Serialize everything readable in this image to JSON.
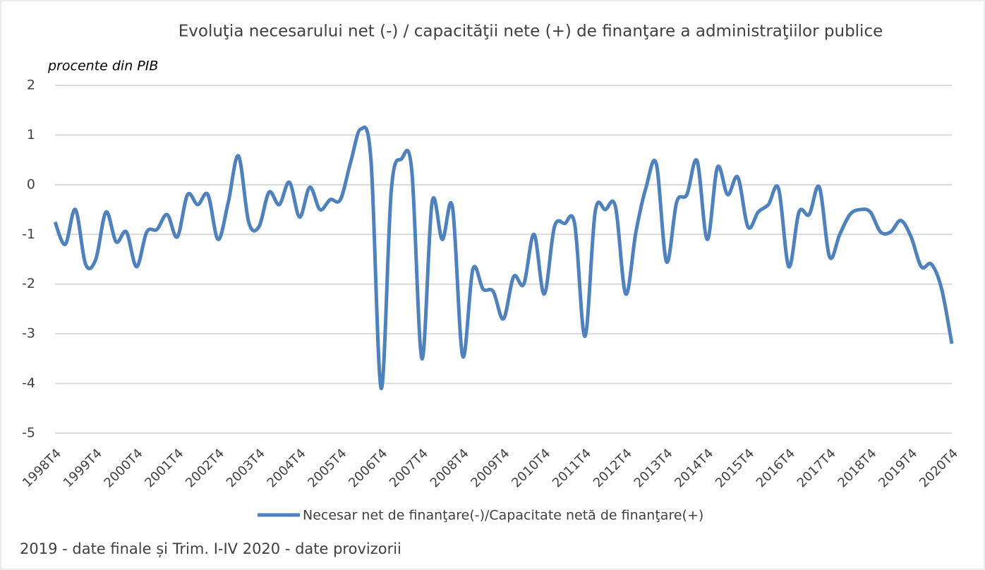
{
  "chart_data": {
    "type": "line",
    "title": "Evoluţia necesarului net (-) / capacităţii nete (+) de finanţare a administraţiilor publice",
    "y_axis_label": "procente din PIB",
    "footnote": "2019 - date finale și Trim. I-IV 2020 - date provizorii",
    "categories": [
      "1998T4",
      null,
      null,
      null,
      "1999T4",
      null,
      null,
      null,
      "2000T4",
      null,
      null,
      null,
      "2001T4",
      null,
      null,
      null,
      "2002T4",
      null,
      null,
      null,
      "2003T4",
      null,
      null,
      null,
      "2004T4",
      null,
      null,
      null,
      "2005T4",
      null,
      null,
      null,
      "2006T4",
      null,
      null,
      null,
      "2007T4",
      null,
      null,
      null,
      "2008T4",
      null,
      null,
      null,
      "2009T4",
      null,
      null,
      null,
      "2010T4",
      null,
      null,
      null,
      "2011T4",
      null,
      null,
      null,
      "2012T4",
      null,
      null,
      null,
      "2013T4",
      null,
      null,
      null,
      "2014T4",
      null,
      null,
      null,
      "2015T4",
      null,
      null,
      null,
      "2016T4",
      null,
      null,
      null,
      "2017T4",
      null,
      null,
      null,
      "2018T4",
      null,
      null,
      null,
      "2019T4",
      null,
      null,
      null,
      "2020T4"
    ],
    "series": [
      {
        "name": "Necesar net de finanţare(-)/Capacitate netă de finanţare(+)",
        "color": "#4f81bd",
        "values": [
          -0.75,
          -1.2,
          -0.5,
          -1.6,
          -1.5,
          -0.55,
          -1.15,
          -0.95,
          -1.65,
          -0.95,
          -0.9,
          -0.6,
          -1.05,
          -0.2,
          -0.4,
          -0.2,
          -1.1,
          -0.35,
          0.58,
          -0.75,
          -0.85,
          -0.15,
          -0.4,
          0.05,
          -0.65,
          -0.05,
          -0.5,
          -0.3,
          -0.3,
          0.45,
          1.12,
          0.5,
          -4.1,
          -0.1,
          0.52,
          0.3,
          -3.5,
          -0.35,
          -1.1,
          -0.45,
          -3.45,
          -1.7,
          -2.1,
          -2.15,
          -2.7,
          -1.85,
          -2.0,
          -1.0,
          -2.2,
          -0.85,
          -0.78,
          -0.8,
          -3.05,
          -0.55,
          -0.5,
          -0.45,
          -2.2,
          -0.95,
          -0.05,
          0.42,
          -1.55,
          -0.35,
          -0.2,
          0.48,
          -1.1,
          0.35,
          -0.2,
          0.15,
          -0.85,
          -0.55,
          -0.4,
          -0.08,
          -1.65,
          -0.55,
          -0.6,
          -0.05,
          -1.45,
          -1.0,
          -0.6,
          -0.5,
          -0.55,
          -0.95,
          -0.95,
          -0.72,
          -1.05,
          -1.65,
          -1.6,
          -2.1,
          -3.2
        ]
      }
    ],
    "ylim": [
      -5,
      2
    ],
    "yticks": [
      -5,
      -4,
      -3,
      -2,
      -1,
      0,
      1,
      2
    ],
    "grid": true,
    "legend": "bottom"
  }
}
